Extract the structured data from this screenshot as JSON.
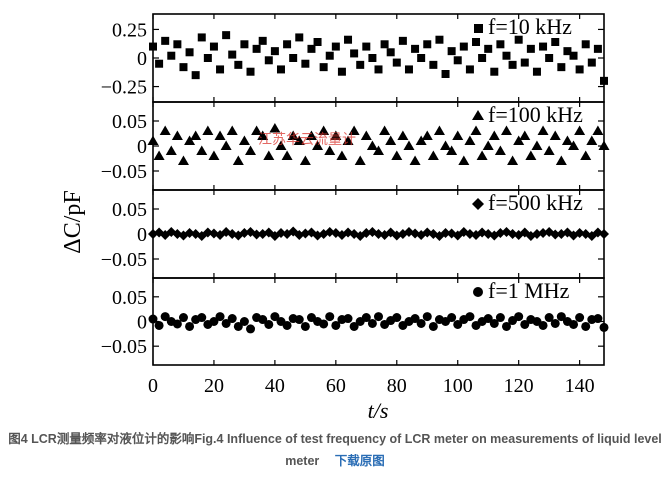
{
  "chart_data": {
    "type": "scatter",
    "ylabel": "ΔC/pF",
    "xlabel": "t/s",
    "x_ticks": [
      0,
      20,
      40,
      60,
      80,
      100,
      120,
      140
    ],
    "xlim": [
      0,
      148
    ],
    "watermark": "江苏华云流量计",
    "panels": [
      {
        "label": "f=10 kHz",
        "marker": "square",
        "ylim": [
          -0.35,
          0.35
        ],
        "y_ticks": [
          0.25,
          0,
          -0.25
        ],
        "y_tick_labels": [
          "0.25",
          "0",
          "−0.25"
        ],
        "x": [
          0,
          2,
          4,
          6,
          8,
          10,
          12,
          14,
          16,
          18,
          20,
          22,
          24,
          26,
          28,
          30,
          32,
          34,
          36,
          38,
          40,
          42,
          44,
          46,
          48,
          50,
          52,
          54,
          56,
          58,
          60,
          62,
          64,
          66,
          68,
          70,
          72,
          74,
          76,
          78,
          80,
          82,
          84,
          86,
          88,
          90,
          92,
          94,
          96,
          98,
          100,
          102,
          104,
          106,
          108,
          110,
          112,
          114,
          116,
          118,
          120,
          122,
          124,
          126,
          128,
          130,
          132,
          134,
          136,
          138,
          140,
          142,
          144,
          146,
          148
        ],
        "y": [
          0.1,
          -0.05,
          0.15,
          0.02,
          0.12,
          -0.08,
          0.05,
          -0.15,
          0.18,
          0,
          0.1,
          -0.1,
          0.2,
          0.03,
          -0.06,
          0.12,
          -0.12,
          0.08,
          0.15,
          -0.02,
          0.06,
          -0.1,
          0.12,
          0,
          0.18,
          -0.05,
          0.08,
          0.14,
          -0.08,
          0.02,
          0.1,
          -0.12,
          0.16,
          0.04,
          -0.06,
          0.1,
          0,
          -0.1,
          0.12,
          0.05,
          -0.04,
          0.15,
          -0.1,
          0.08,
          0,
          0.12,
          -0.06,
          0.16,
          -0.14,
          0.06,
          -0.02,
          0.1,
          -0.1,
          0.14,
          0,
          0.08,
          -0.12,
          0.12,
          0.02,
          -0.06,
          0.16,
          -0.04,
          0.08,
          -0.12,
          0.1,
          0,
          0.14,
          -0.08,
          0.06,
          0.02,
          -0.1,
          0.12,
          -0.04,
          0.08,
          -0.2
        ]
      },
      {
        "label": "f=100 kHz",
        "marker": "triangle",
        "ylim": [
          -0.08,
          0.08
        ],
        "y_ticks": [
          0.05,
          0,
          -0.05
        ],
        "y_tick_labels": [
          "0.05",
          "0",
          "−0.05"
        ],
        "x": [
          0,
          2,
          4,
          6,
          8,
          10,
          12,
          14,
          16,
          18,
          20,
          22,
          24,
          26,
          28,
          30,
          32,
          34,
          36,
          38,
          40,
          42,
          44,
          46,
          48,
          50,
          52,
          54,
          56,
          58,
          60,
          62,
          64,
          66,
          68,
          70,
          72,
          74,
          76,
          78,
          80,
          82,
          84,
          86,
          88,
          90,
          92,
          94,
          96,
          98,
          100,
          102,
          104,
          106,
          108,
          110,
          112,
          114,
          116,
          118,
          120,
          122,
          124,
          126,
          128,
          130,
          132,
          134,
          136,
          138,
          140,
          142,
          144,
          146,
          148
        ],
        "y": [
          0.01,
          -0.02,
          0.03,
          -0.01,
          0.02,
          -0.03,
          0.01,
          0.02,
          -0.01,
          0.03,
          -0.02,
          0.02,
          0,
          0.03,
          -0.03,
          0.01,
          -0.01,
          0.03,
          0.02,
          -0.02,
          0.035,
          0,
          -0.02,
          0.02,
          0.01,
          -0.03,
          0.02,
          0,
          0.03,
          -0.01,
          0.02,
          -0.02,
          0.01,
          0.03,
          -0.03,
          0.02,
          0,
          -0.01,
          0.03,
          0.01,
          -0.02,
          0.02,
          0,
          -0.03,
          0.01,
          0.02,
          -0.02,
          0.03,
          0,
          -0.01,
          0.02,
          -0.03,
          0.01,
          0.03,
          -0.02,
          0,
          0.02,
          -0.01,
          0.03,
          -0.03,
          0.01,
          0.02,
          -0.02,
          0,
          0.03,
          -0.01,
          0.02,
          -0.03,
          0.01,
          0,
          0.03,
          -0.02,
          0.01,
          0.03,
          0
        ]
      },
      {
        "label": "f=500 kHz",
        "marker": "diamond",
        "ylim": [
          -0.08,
          0.08
        ],
        "y_ticks": [
          0.05,
          0,
          -0.05
        ],
        "y_tick_labels": [
          "0.05",
          "0",
          "−0.05"
        ],
        "x": [
          0,
          2,
          4,
          6,
          8,
          10,
          12,
          14,
          16,
          18,
          20,
          22,
          24,
          26,
          28,
          30,
          32,
          34,
          36,
          38,
          40,
          42,
          44,
          46,
          48,
          50,
          52,
          54,
          56,
          58,
          60,
          62,
          64,
          66,
          68,
          70,
          72,
          74,
          76,
          78,
          80,
          82,
          84,
          86,
          88,
          90,
          92,
          94,
          96,
          98,
          100,
          102,
          104,
          106,
          108,
          110,
          112,
          114,
          116,
          118,
          120,
          122,
          124,
          126,
          128,
          130,
          132,
          134,
          136,
          138,
          140,
          142,
          144,
          146,
          148
        ],
        "y": [
          0,
          0.003,
          -0.002,
          0.004,
          0,
          -0.003,
          0.002,
          0,
          -0.004,
          0.003,
          0.001,
          -0.002,
          0.004,
          0,
          -0.003,
          0.002,
          0.004,
          -0.001,
          0,
          0.003,
          -0.004,
          0.002,
          0,
          0.005,
          -0.002,
          0.001,
          0.003,
          -0.003,
          0,
          0.004,
          0.002,
          -0.002,
          0.003,
          0,
          -0.004,
          0.002,
          0.004,
          0,
          -0.002,
          0.003,
          -0.003,
          0,
          0.004,
          0.001,
          -0.002,
          0.003,
          0,
          -0.004,
          0.002,
          0.001,
          -0.003,
          0.004,
          0,
          -0.002,
          0.003,
          0,
          -0.003,
          0.002,
          0.004,
          0,
          -0.002,
          0.003,
          -0.004,
          0,
          0.002,
          0.004,
          -0.001,
          0,
          0.003,
          -0.003,
          0.002,
          0,
          -0.004,
          0.003,
          0
        ]
      },
      {
        "label": "f=1 MHz",
        "marker": "circle",
        "ylim": [
          -0.08,
          0.08
        ],
        "y_ticks": [
          0.05,
          0,
          -0.05
        ],
        "y_tick_labels": [
          "0.05",
          "0",
          "−0.05"
        ],
        "x": [
          0,
          2,
          4,
          6,
          8,
          10,
          12,
          14,
          16,
          18,
          20,
          22,
          24,
          26,
          28,
          30,
          32,
          34,
          36,
          38,
          40,
          42,
          44,
          46,
          48,
          50,
          52,
          54,
          56,
          58,
          60,
          62,
          64,
          66,
          68,
          70,
          72,
          74,
          76,
          78,
          80,
          82,
          84,
          86,
          88,
          90,
          92,
          94,
          96,
          98,
          100,
          102,
          104,
          106,
          108,
          110,
          112,
          114,
          116,
          118,
          120,
          122,
          124,
          126,
          128,
          130,
          132,
          134,
          136,
          138,
          140,
          142,
          144,
          146,
          148
        ],
        "y": [
          0.005,
          -0.008,
          0.01,
          0,
          -0.005,
          0.008,
          -0.01,
          0.004,
          0.008,
          -0.006,
          0,
          0.01,
          -0.004,
          0.006,
          -0.01,
          0,
          -0.015,
          0.008,
          0.004,
          -0.006,
          0.01,
          0,
          -0.008,
          0.006,
          0.004,
          -0.01,
          0.008,
          0,
          -0.005,
          0.01,
          -0.008,
          0.004,
          0.006,
          -0.01,
          0,
          0.008,
          -0.004,
          0.01,
          -0.006,
          0.002,
          0.008,
          -0.008,
          0,
          0.006,
          -0.004,
          0.01,
          -0.01,
          0.004,
          0,
          0.008,
          -0.006,
          0.004,
          0.01,
          -0.008,
          0,
          0.006,
          -0.004,
          0.008,
          -0.01,
          0.002,
          0.01,
          -0.006,
          0.004,
          0,
          -0.008,
          0.008,
          -0.004,
          0.01,
          0,
          -0.006,
          0.008,
          -0.01,
          0.004,
          0.006,
          -0.012
        ]
      }
    ]
  },
  "caption": {
    "text": "图4 LCR测量频率对液位计的影响Fig.4 Influence of test frequency of LCR meter on measurements of liquid level meter",
    "link": "下载原图"
  }
}
